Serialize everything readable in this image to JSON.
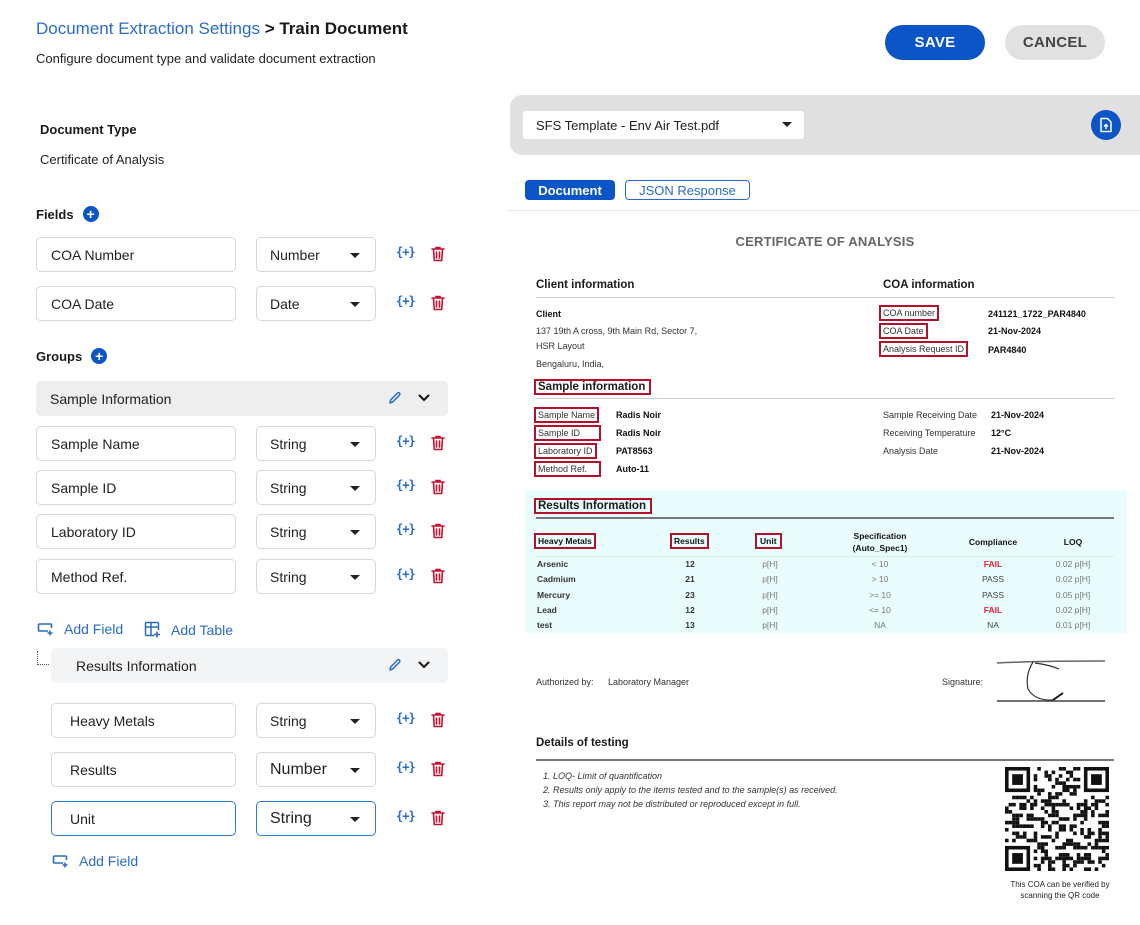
{
  "header": {
    "breadcrumb_link": "Document Extraction Settings",
    "breadcrumb_separator": ">",
    "breadcrumb_current": "Train Document",
    "subtitle": "Configure document type and validate document extraction",
    "save_label": "SAVE",
    "cancel_label": "CANCEL"
  },
  "left": {
    "document_type_label": "Document Type",
    "document_type_value": "Certificate of Analysis",
    "fields_label": "Fields",
    "groups_label": "Groups",
    "fields": [
      {
        "name": "COA Number",
        "type": "Number"
      },
      {
        "name": "COA Date",
        "type": "Date"
      }
    ],
    "groups": [
      {
        "name": "Sample Information",
        "fields": [
          {
            "name": "Sample Name",
            "type": "String"
          },
          {
            "name": "Sample ID",
            "type": "String"
          },
          {
            "name": "Laboratory ID",
            "type": "String"
          },
          {
            "name": "Method Ref.",
            "type": "String"
          }
        ],
        "add_field_label": "Add Field",
        "add_table_label": "Add Table",
        "tables": [
          {
            "name": "Results Information",
            "fields": [
              {
                "name": "Heavy Metals",
                "type": "String"
              },
              {
                "name": "Results",
                "type": "Number"
              },
              {
                "name": "Unit",
                "type": "String"
              }
            ],
            "add_field_label": "Add Field"
          }
        ]
      }
    ],
    "variable_icon_glyph": "{+}"
  },
  "right": {
    "file_select_value": "SFS Template - Env Air Test.pdf",
    "tabs": [
      {
        "label": "Document",
        "active": true
      },
      {
        "label": "JSON Response",
        "active": false
      }
    ]
  },
  "document": {
    "title": "CERTIFICATE OF ANALYSIS",
    "client_info_heading": "Client information",
    "coa_info_heading": "COA information",
    "client_label": "Client",
    "client_address": [
      "137 19th A cross, 9th Main Rd, Sector 7,",
      "HSR Layout",
      "Bengaluru, India,"
    ],
    "coa_rows": [
      {
        "label": "COA number",
        "value": "241121_1722_PAR4840"
      },
      {
        "label": "COA Date",
        "value": "21-Nov-2024"
      },
      {
        "label": "Analysis Request ID",
        "value": "PAR4840"
      }
    ],
    "sample_heading": "Sample information",
    "sample_rows": [
      {
        "label": "Sample Name",
        "value": "Radis Noir"
      },
      {
        "label": "Sample ID",
        "value": "Radis Noir"
      },
      {
        "label": "Laboratory ID",
        "value": "PAT8563"
      },
      {
        "label": "Method Ref.",
        "value": "Auto-11"
      }
    ],
    "sample_right_rows": [
      {
        "label": "Sample Receiving Date",
        "value": "21-Nov-2024"
      },
      {
        "label": "Receiving Temperature",
        "value": "12°C"
      },
      {
        "label": "Analysis Date",
        "value": "21-Nov-2024"
      }
    ],
    "results_heading": "Results Information",
    "results_columns": [
      "Heavy Metals",
      "Results",
      "Unit",
      "Specification",
      "(Auto_Spec1)",
      "Compliance",
      "LOQ"
    ],
    "results_rows": [
      {
        "metal": "Arsenic",
        "result": "12",
        "unit": "p[H]",
        "spec": "< 10",
        "compliance": "FAIL",
        "loq": "0.02 p[H]"
      },
      {
        "metal": "Cadmium",
        "result": "21",
        "unit": "p[H]",
        "spec": "> 10",
        "compliance": "PASS",
        "loq": "0.02 p[H]"
      },
      {
        "metal": "Mercury",
        "result": "23",
        "unit": "p[H]",
        "spec": ">= 10",
        "compliance": "PASS",
        "loq": "0.05 p[H]"
      },
      {
        "metal": "Lead",
        "result": "12",
        "unit": "p[H]",
        "spec": "<= 10",
        "compliance": "FAIL",
        "loq": "0.02 p[H]"
      },
      {
        "metal": "test",
        "result": "13",
        "unit": "p[H]",
        "spec": "NA",
        "compliance": "NA",
        "loq": "0.01 p[H]"
      }
    ],
    "authorized_label": "Authorized by:",
    "authorized_value": "Laboratory Manager",
    "signature_label": "Signature:",
    "details_heading": "Details of testing",
    "notes": [
      "1. LOQ- Limit of quantification",
      "2. Results only apply to the items tested and to the sample(s) as received.",
      "3. This report may not be distributed or reproduced except in full."
    ],
    "qr_caption_line1": "This COA can be verified by",
    "qr_caption_line2": "scanning the QR code"
  },
  "colors": {
    "primary": "#0b55c7",
    "link": "#2a6bc9",
    "danger": "#c8102e",
    "highlight_box": "#b3102a",
    "results_bg": "#e9fdfd",
    "fail_text": "#e8213a"
  }
}
